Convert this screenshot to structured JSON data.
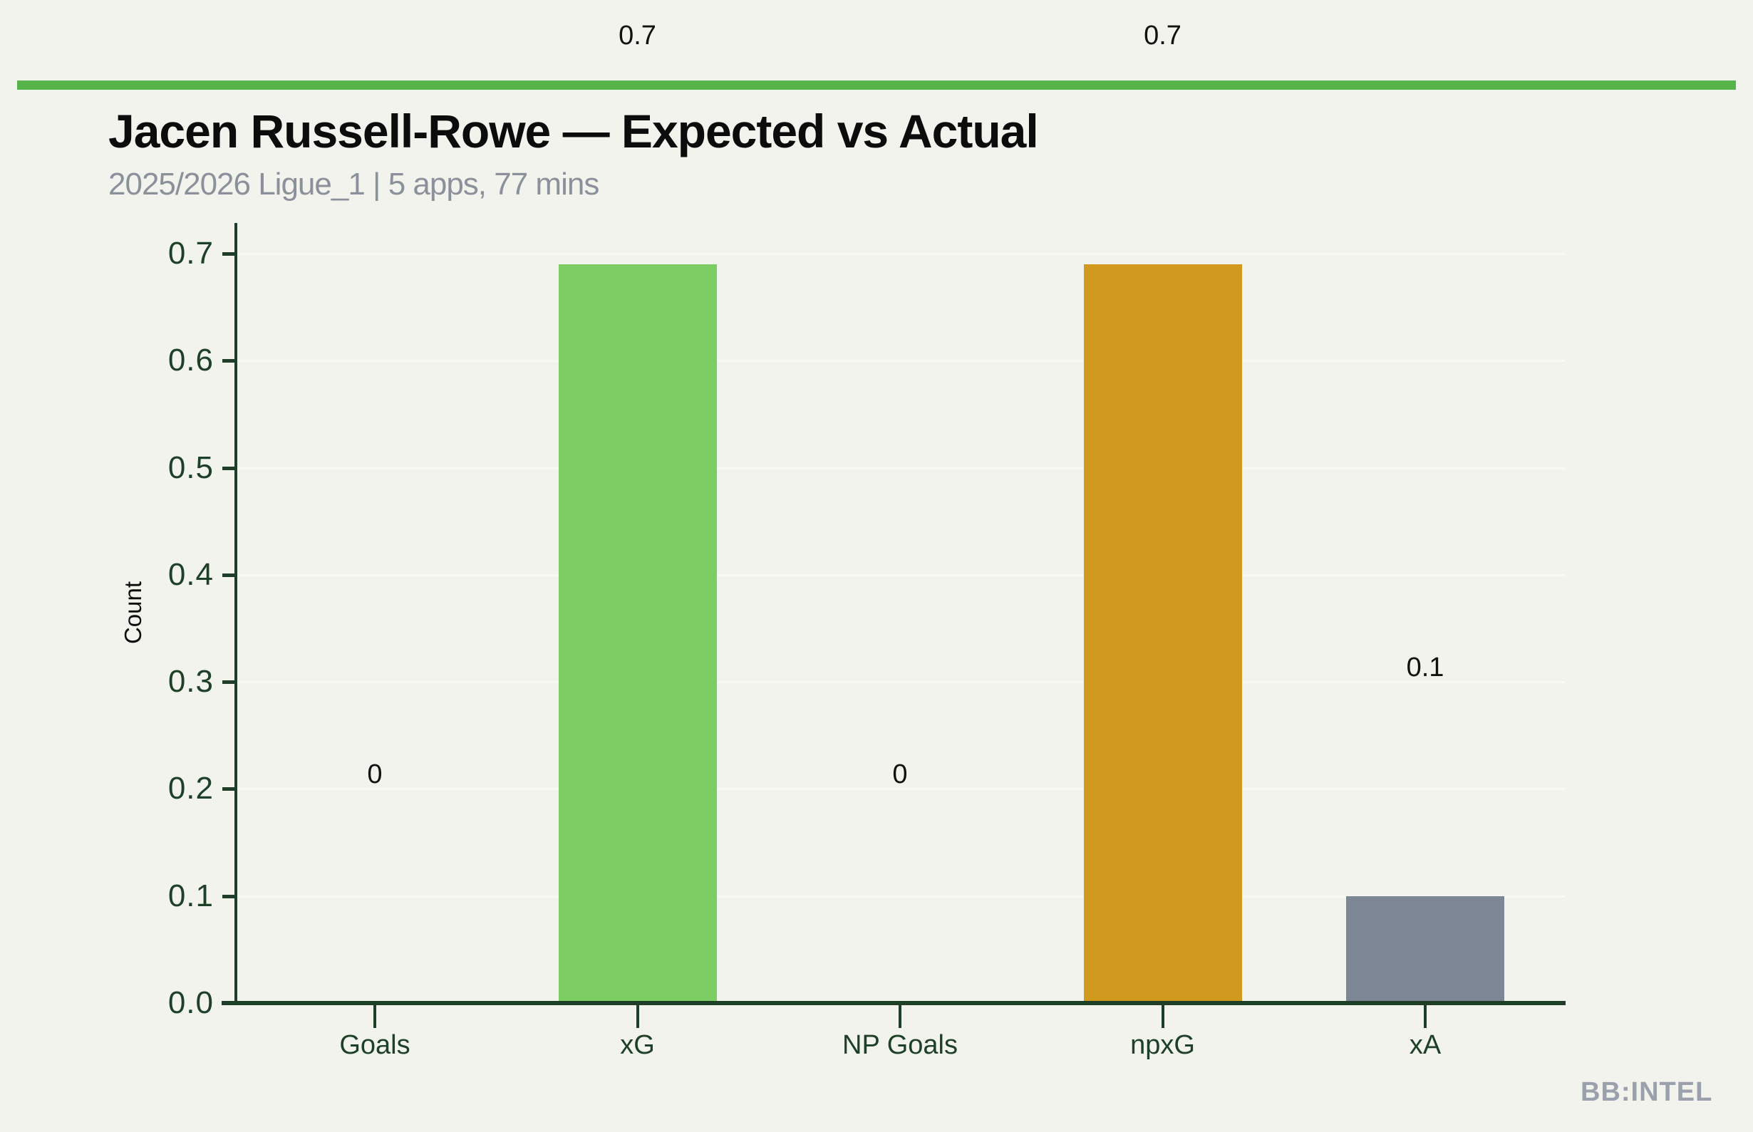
{
  "page": {
    "background": "#f2f3ec",
    "accent_stripe_color": "#56b44a",
    "watermark": "BB:INTEL",
    "watermark_color": "#9aa1ac"
  },
  "header": {
    "title": "Jacen Russell-Rowe — Expected vs Actual",
    "subtitle": "2025/2026 Ligue_1 | 5 apps, 77 mins"
  },
  "chart_data": {
    "type": "bar",
    "title": "Jacen Russell-Rowe — Expected vs Actual",
    "subtitle": "2025/2026 Ligue_1 | 5 apps, 77 mins",
    "categories": [
      "Goals",
      "xG",
      "NP Goals",
      "npxG",
      "xA"
    ],
    "values": [
      0,
      0.69,
      0,
      0.69,
      0.1
    ],
    "value_labels": [
      "0",
      "0.7",
      "0",
      "0.7",
      "0.1"
    ],
    "bar_colors": [
      null,
      "#7ccd63",
      null,
      "#d2991f",
      "#7d8695"
    ],
    "xlabel": "",
    "ylabel": "Count",
    "ylim": [
      0,
      0.7
    ],
    "yticks": [
      "0.0",
      "0.1",
      "0.2",
      "0.3",
      "0.4",
      "0.5",
      "0.6",
      "0.7"
    ],
    "grid": "horizontal",
    "legend": "none",
    "axis_color": "#1e3e27",
    "tick_label_color": "#1e4028",
    "value_label_color": "#111111",
    "gridline_color": "#f8f9f2"
  }
}
